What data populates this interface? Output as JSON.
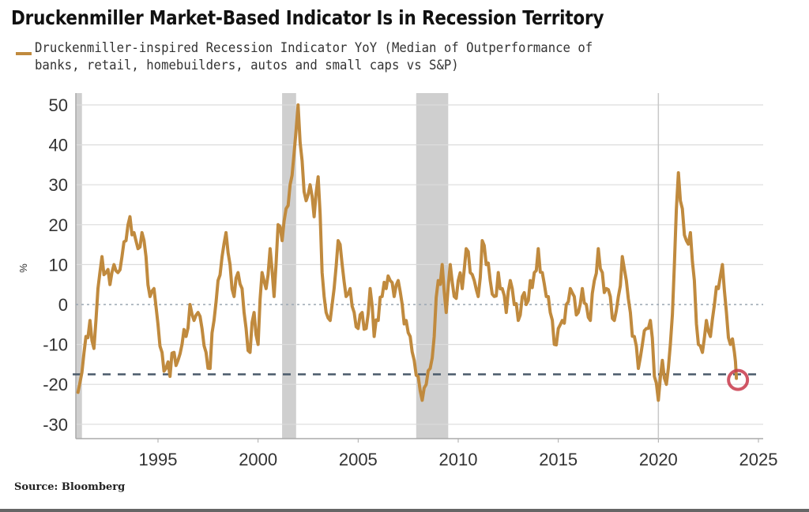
{
  "header": {
    "title": "Druckenmiller Market-Based Indicator Is in Recession Territory"
  },
  "legend": {
    "line1": "Druckenmiller-inspired Recession Indicator YoY (Median of Outperformance of",
    "line2": "banks, retail, homebuilders, autos and small caps vs S&P)"
  },
  "footer": {
    "source": "Source: Bloomberg"
  },
  "chart_data": {
    "type": "line",
    "title": "Druckenmiller Market-Based Indicator Is in Recession Territory",
    "xlabel": "",
    "ylabel": "%",
    "xlim": [
      1991.0,
      2025.0
    ],
    "ylim": [
      -33,
      52
    ],
    "yticks": [
      50,
      40,
      30,
      20,
      10,
      0,
      -10,
      -20,
      -30
    ],
    "xticks": [
      1995,
      2000,
      2005,
      2010,
      2015,
      2020,
      2025
    ],
    "grid": true,
    "legend_position": "top-left",
    "colors": {
      "series": "#c08a3e",
      "recession": "#cfcfcf",
      "threshold": "#4a5a6a",
      "highlight": "#c8384a"
    },
    "recession_bands": [
      [
        1990.6,
        1991.2
      ],
      [
        2001.2,
        2001.9
      ],
      [
        2007.9,
        2009.5
      ]
    ],
    "threshold_line": {
      "value": -17.5,
      "style": "dashed"
    },
    "zero_line": {
      "value": 0,
      "style": "dotted"
    },
    "vertical_marker": {
      "x": 2020.0
    },
    "highlight_point": {
      "x": 2023.9,
      "y": -18.5
    },
    "series": [
      {
        "name": "Druckenmiller-inspired Recession Indicator YoY (Median of Outperformance of banks, retail, homebuilders, autos and small caps vs S&P)",
        "x": [
          1991.0,
          1991.2,
          1991.4,
          1991.6,
          1991.8,
          1992.0,
          1992.2,
          1992.4,
          1992.6,
          1992.8,
          1993.0,
          1993.2,
          1993.4,
          1993.6,
          1993.8,
          1994.0,
          1994.2,
          1994.4,
          1994.6,
          1994.8,
          1995.0,
          1995.2,
          1995.4,
          1995.6,
          1995.8,
          1996.0,
          1996.2,
          1996.4,
          1996.6,
          1996.8,
          1997.0,
          1997.2,
          1997.4,
          1997.6,
          1997.8,
          1998.0,
          1998.2,
          1998.4,
          1998.6,
          1998.8,
          1999.0,
          1999.2,
          1999.4,
          1999.6,
          1999.8,
          2000.0,
          2000.2,
          2000.4,
          2000.6,
          2000.8,
          2001.0,
          2001.2,
          2001.4,
          2001.6,
          2001.8,
          2002.0,
          2002.2,
          2002.4,
          2002.6,
          2002.8,
          2003.0,
          2003.2,
          2003.4,
          2003.6,
          2003.8,
          2004.0,
          2004.2,
          2004.4,
          2004.6,
          2004.8,
          2005.0,
          2005.2,
          2005.4,
          2005.6,
          2005.8,
          2006.0,
          2006.2,
          2006.4,
          2006.6,
          2006.8,
          2007.0,
          2007.2,
          2007.4,
          2007.6,
          2007.8,
          2008.0,
          2008.2,
          2008.4,
          2008.6,
          2008.8,
          2009.0,
          2009.2,
          2009.4,
          2009.6,
          2009.8,
          2010.0,
          2010.2,
          2010.4,
          2010.6,
          2010.8,
          2011.0,
          2011.2,
          2011.4,
          2011.6,
          2011.8,
          2012.0,
          2012.2,
          2012.4,
          2012.6,
          2012.8,
          2013.0,
          2013.2,
          2013.4,
          2013.6,
          2013.8,
          2014.0,
          2014.2,
          2014.4,
          2014.6,
          2014.8,
          2015.0,
          2015.2,
          2015.4,
          2015.6,
          2015.8,
          2016.0,
          2016.2,
          2016.4,
          2016.6,
          2016.8,
          2017.0,
          2017.2,
          2017.4,
          2017.6,
          2017.8,
          2018.0,
          2018.2,
          2018.4,
          2018.6,
          2018.8,
          2019.0,
          2019.2,
          2019.4,
          2019.6,
          2019.8,
          2020.0,
          2020.2,
          2020.4,
          2020.6,
          2020.8,
          2021.0,
          2021.2,
          2021.4,
          2021.6,
          2021.8,
          2022.0,
          2022.2,
          2022.4,
          2022.6,
          2022.8,
          2023.0,
          2023.2,
          2023.4,
          2023.6,
          2023.8,
          2023.9
        ],
        "values": [
          -22,
          -17,
          -8,
          -4,
          -11,
          4,
          12,
          8,
          5,
          10,
          8,
          12,
          16,
          22,
          18,
          14,
          18,
          12,
          2,
          4,
          -5,
          -12,
          -16,
          -18,
          -12,
          -14,
          -10,
          -8,
          0,
          -4,
          -2,
          -6,
          -12,
          -16,
          -4,
          6,
          12,
          18,
          10,
          2,
          8,
          4,
          -6,
          -12,
          -2,
          -10,
          8,
          4,
          14,
          2,
          20,
          16,
          24,
          30,
          38,
          50,
          36,
          26,
          30,
          22,
          32,
          8,
          -2,
          -4,
          4,
          16,
          10,
          2,
          4,
          -2,
          -6,
          -2,
          -6,
          4,
          -8,
          -4,
          2,
          4,
          6,
          2,
          6,
          0,
          -4,
          -8,
          -14,
          -18,
          -24,
          -20,
          -16,
          -8,
          6,
          10,
          -2,
          10,
          2,
          6,
          4,
          14,
          8,
          6,
          2,
          16,
          10,
          6,
          2,
          8,
          4,
          -2,
          6,
          0,
          -4,
          2,
          0,
          6,
          8,
          14,
          8,
          2,
          -2,
          -10,
          -6,
          -4,
          0,
          4,
          2,
          -2,
          4,
          0,
          -4,
          6,
          14,
          8,
          4,
          2,
          -4,
          2,
          12,
          6,
          -2,
          -8,
          -16,
          -10,
          -6,
          -4,
          -18,
          -24,
          -14,
          -20,
          -10,
          10,
          33,
          24,
          16,
          18,
          6,
          -10,
          -12,
          -4,
          -8,
          0,
          4,
          10,
          -2,
          -10,
          -12,
          -18.5
        ]
      }
    ]
  }
}
